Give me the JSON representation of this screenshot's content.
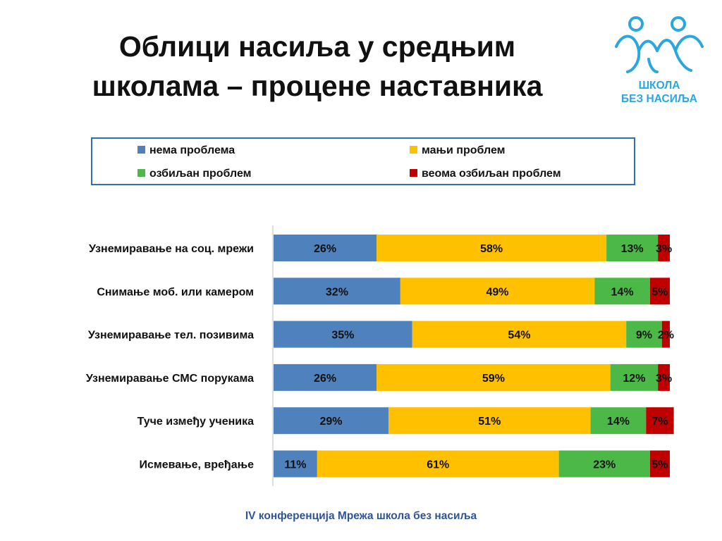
{
  "title_line1": "Облици насиља у средњим",
  "title_line2": "школама – процене наставника",
  "logo": {
    "line1": "ШКОЛА",
    "line2": "БЕЗ НАСИЉА",
    "icon": "children-figures-icon",
    "color": "#2aa7dc"
  },
  "footer": "IV конференција Мрежа школа без насиља",
  "legend": [
    {
      "label": "нема проблема",
      "color": "#4f81bd"
    },
    {
      "label": "мањи проблем",
      "color": "#ffc000"
    },
    {
      "label": "озбиљан проблем",
      "color": "#4cb848"
    },
    {
      "label": "веома озбиљан проблем",
      "color": "#c00000"
    }
  ],
  "chart_data": {
    "type": "bar",
    "orientation": "horizontal",
    "stacked": true,
    "xlim": [
      0,
      100
    ],
    "categories": [
      "Узнемиравање на соц. мрежи",
      "Снимање моб. или камером",
      "Узнемиравање тел. позивима",
      "Узнемиравање СМС порукама",
      "Туче између ученика",
      "Исмевање, вређање"
    ],
    "series": [
      {
        "name": "нема проблема",
        "color": "#4f81bd",
        "values": [
          26,
          32,
          35,
          26,
          29,
          11
        ],
        "labels": [
          "26%",
          "32%",
          "35%",
          "26%",
          "29%",
          "11%"
        ]
      },
      {
        "name": "мањи проблем",
        "color": "#ffc000",
        "values": [
          58,
          49,
          54,
          59,
          51,
          61
        ],
        "labels": [
          "58%",
          "49%",
          "54%",
          "59%",
          "51%",
          "61%"
        ]
      },
      {
        "name": "озбиљан проблем",
        "color": "#4cb848",
        "values": [
          13,
          14,
          9,
          12,
          14,
          23
        ],
        "labels": [
          "13%",
          "14%",
          "9%",
          "12%",
          "14%",
          "23%"
        ]
      },
      {
        "name": "веома озбиљан проблем",
        "color": "#c00000",
        "values": [
          3,
          5,
          2,
          3,
          7,
          5
        ],
        "labels": [
          "3%",
          "5%",
          "2%",
          "3%",
          "7%",
          "5%"
        ]
      }
    ],
    "legend_position": "top",
    "grid": false
  }
}
